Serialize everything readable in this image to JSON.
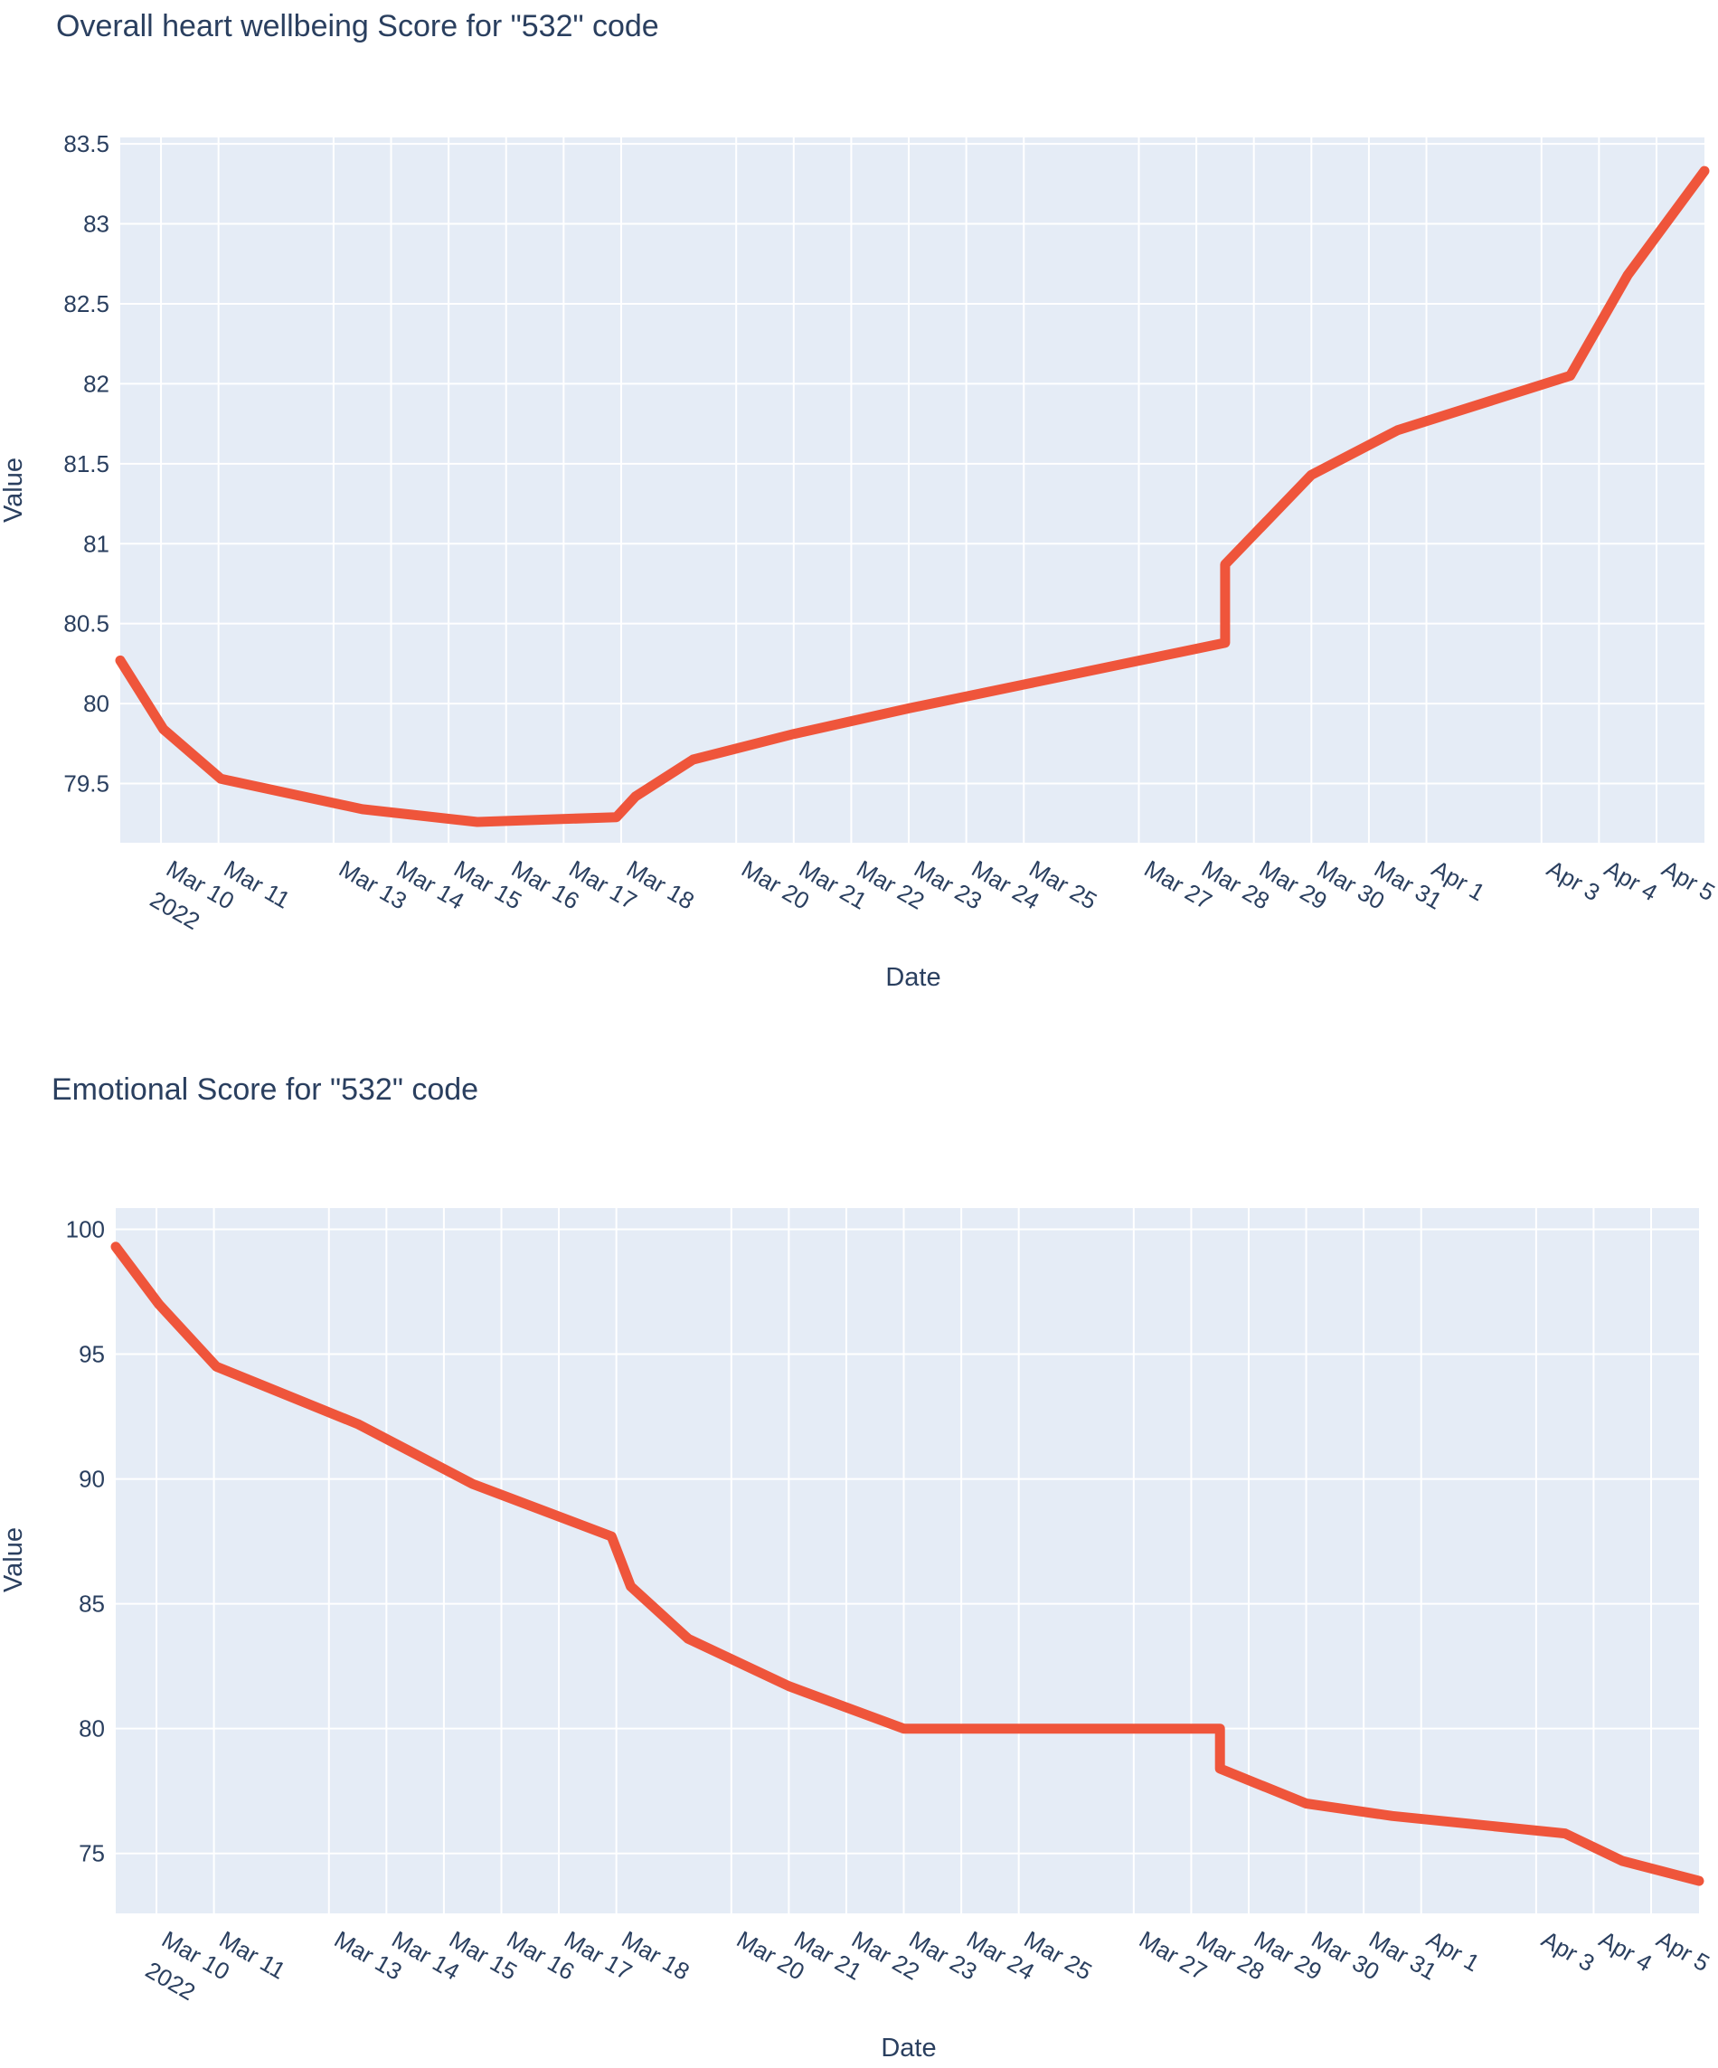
{
  "chart_data": [
    {
      "type": "line",
      "title": "Overall heart wellbeing Score for \"532\" code",
      "xlabel": "Date",
      "ylabel": "Value",
      "grid": true,
      "line_color": "#ef553b",
      "plot_bgcolor": "#e5ecf6",
      "xlim": [
        "2022-03-09 07:00",
        "2022-04-05 20:00"
      ],
      "ylim": [
        79.13,
        83.54
      ],
      "x_tick_labels": [
        "Mar 10",
        "Mar 11",
        "Mar 13",
        "Mar 14",
        "Mar 15",
        "Mar 16",
        "Mar 17",
        "Mar 18",
        "Mar 20",
        "Mar 21",
        "Mar 22",
        "Mar 23",
        "Mar 24",
        "Mar 25",
        "Mar 27",
        "Mar 28",
        "Mar 29",
        "Mar 30",
        "Mar 31",
        "Apr 1",
        "Apr 3",
        "Apr 4",
        "Apr 5"
      ],
      "x_tick_year": "2022",
      "y_ticks": [
        83.5,
        83,
        82.5,
        82,
        81.5,
        81,
        80.5,
        80,
        79.5
      ],
      "y_tick_labels": [
        "83.5",
        "83",
        "82.5",
        "82",
        "81.5",
        "81",
        "80.5",
        "80",
        "79.5"
      ],
      "series": [
        {
          "x": [
            "2022-03-09 07:00",
            "2022-03-10 01:00",
            "2022-03-11 01:00",
            "2022-03-13 12:00",
            "2022-03-15 12:00",
            "2022-03-17 22:00",
            "2022-03-18 06:00",
            "2022-03-19 06:00",
            "2022-03-21 00:00",
            "2022-03-23 00:00",
            "2022-03-28 12:00",
            "2022-03-28 12:00",
            "2022-03-30 00:00",
            "2022-03-31 12:00",
            "2022-04-03 12:00",
            "2022-04-04 12:00",
            "2022-04-05 20:00"
          ],
          "values": [
            80.27,
            79.84,
            79.53,
            79.34,
            79.26,
            79.29,
            79.42,
            79.65,
            79.81,
            79.97,
            80.38,
            80.87,
            81.43,
            81.71,
            82.05,
            82.68,
            83.33
          ]
        }
      ]
    },
    {
      "type": "line",
      "title": "Emotional Score for \"532\" code",
      "xlabel": "Date",
      "ylabel": "Value",
      "grid": true,
      "line_color": "#ef553b",
      "plot_bgcolor": "#e5ecf6",
      "xlim": [
        "2022-03-09 07:00",
        "2022-04-05 20:00"
      ],
      "ylim": [
        72.6,
        100.85
      ],
      "x_tick_labels": [
        "Mar 10",
        "Mar 11",
        "Mar 13",
        "Mar 14",
        "Mar 15",
        "Mar 16",
        "Mar 17",
        "Mar 18",
        "Mar 20",
        "Mar 21",
        "Mar 22",
        "Mar 23",
        "Mar 24",
        "Mar 25",
        "Mar 27",
        "Mar 28",
        "Mar 29",
        "Mar 30",
        "Mar 31",
        "Apr 1",
        "Apr 3",
        "Apr 4",
        "Apr 5"
      ],
      "x_tick_year": "2022",
      "y_ticks": [
        100,
        95,
        90,
        85,
        80,
        75
      ],
      "y_tick_labels": [
        "100",
        "95",
        "90",
        "85",
        "80",
        "75"
      ],
      "series": [
        {
          "x": [
            "2022-03-09 07:00",
            "2022-03-10 01:00",
            "2022-03-11 01:00",
            "2022-03-13 12:00",
            "2022-03-15 12:00",
            "2022-03-17 22:00",
            "2022-03-18 06:00",
            "2022-03-19 06:00",
            "2022-03-21 00:00",
            "2022-03-23 00:00",
            "2022-03-28 12:00",
            "2022-03-28 12:00",
            "2022-03-30 00:00",
            "2022-03-31 12:00",
            "2022-04-03 12:00",
            "2022-04-04 12:00",
            "2022-04-05 20:00"
          ],
          "values": [
            99.3,
            97.0,
            94.5,
            92.2,
            89.8,
            87.7,
            85.7,
            83.6,
            81.7,
            80.0,
            80.0,
            78.4,
            77.0,
            76.5,
            75.8,
            74.7,
            73.9
          ]
        }
      ]
    }
  ]
}
